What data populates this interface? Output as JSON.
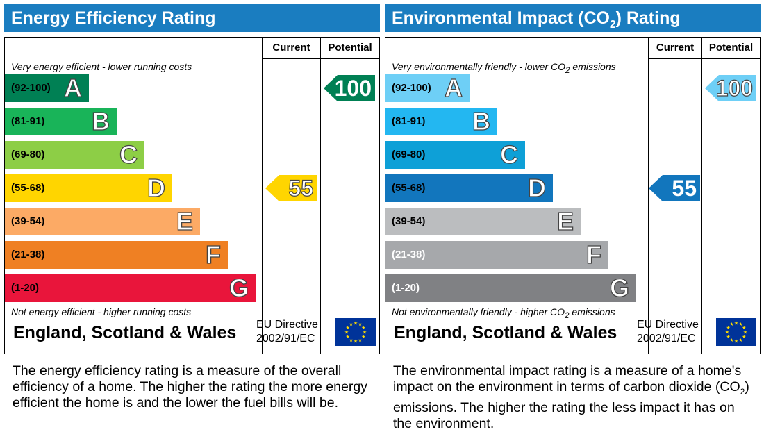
{
  "chart_data": [
    {
      "type": "bar",
      "title": "Energy Efficiency Rating",
      "columns": [
        "Current",
        "Potential"
      ],
      "top_note": "Very energy efficient - lower running costs",
      "bottom_note": "Not energy efficient - higher running costs",
      "bands": [
        {
          "range": "(92-100)",
          "letter": "A",
          "color": "#008054"
        },
        {
          "range": "(81-91)",
          "letter": "B",
          "color": "#19b459"
        },
        {
          "range": "(69-80)",
          "letter": "C",
          "color": "#8dce46"
        },
        {
          "range": "(55-68)",
          "letter": "D",
          "color": "#ffd500"
        },
        {
          "range": "(39-54)",
          "letter": "E",
          "color": "#fcaa65"
        },
        {
          "range": "(21-38)",
          "letter": "F",
          "color": "#ef8023"
        },
        {
          "range": "(1-20)",
          "letter": "G",
          "color": "#e9153b"
        }
      ],
      "current": {
        "value": 55,
        "color": "#ffd500"
      },
      "potential": {
        "value": 100,
        "color": "#008054"
      },
      "footer_region": "England, Scotland & Wales",
      "eu_directive": [
        "EU Directive",
        "2002/91/EC"
      ],
      "description": "The energy efficiency rating is a measure of the overall efficiency of a home. The higher the rating the more energy efficient the home is and the lower the fuel bills will be."
    },
    {
      "type": "bar",
      "title_pre": "Environmental Impact (CO",
      "title_sub": "2",
      "title_post": ") Rating",
      "columns": [
        "Current",
        "Potential"
      ],
      "top_note_pre": "Very environmentally friendly - lower CO",
      "top_note_sub": "2",
      "top_note_post": " emissions",
      "bottom_note_pre": "Not environmentally friendly - higher CO",
      "bottom_note_sub": "2",
      "bottom_note_post": " emissions",
      "bands": [
        {
          "range": "(92-100)",
          "letter": "A",
          "color": "#6ecff6"
        },
        {
          "range": "(81-91)",
          "letter": "B",
          "color": "#23b7f1"
        },
        {
          "range": "(69-80)",
          "letter": "C",
          "color": "#0ea0d7"
        },
        {
          "range": "(55-68)",
          "letter": "D",
          "color": "#1276bd"
        },
        {
          "range": "(39-54)",
          "letter": "E",
          "color": "#bbbdbf"
        },
        {
          "range": "(21-38)",
          "letter": "F",
          "color": "#a6a8ab"
        },
        {
          "range": "(1-20)",
          "letter": "G",
          "color": "#808184"
        }
      ],
      "current": {
        "value": 55,
        "color": "#1276bd"
      },
      "potential": {
        "value": 100,
        "color": "#6ecff6"
      },
      "footer_region": "England, Scotland & Wales",
      "eu_directive": [
        "EU Directive",
        "2002/91/EC"
      ],
      "description_pre": "The environmental impact rating is a measure of a home's impact on the environment in terms of carbon dioxide (CO",
      "description_sub": "2",
      "description_post": ") emissions. The higher the rating the less impact it has on the environment."
    }
  ]
}
